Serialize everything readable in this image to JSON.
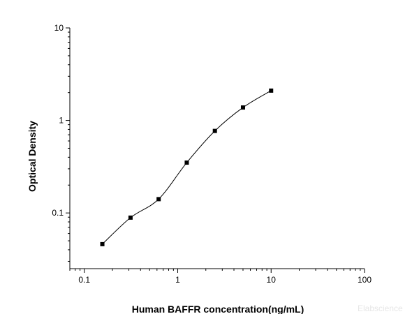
{
  "chart_data": {
    "type": "scatter",
    "title": "",
    "xlabel": "Human BAFFR concentration(ng/mL)",
    "ylabel": "Optical Density",
    "xscale": "log",
    "yscale": "log",
    "xlim": [
      0.07,
      100
    ],
    "ylim": [
      0.025,
      10
    ],
    "x_ticks": [
      0.1,
      1,
      10,
      100
    ],
    "x_tick_labels": [
      "0.1",
      "1",
      "10",
      "100"
    ],
    "y_ticks": [
      0.1,
      1,
      10
    ],
    "y_tick_labels": [
      "0.1",
      "1",
      "10"
    ],
    "grid": false,
    "legend": "none",
    "series": [
      {
        "marker": "square",
        "fit": "four-parameter logistic curve",
        "x": [
          0.156,
          0.3125,
          0.625,
          1.25,
          2.5,
          5,
          10
        ],
        "y": [
          0.046,
          0.089,
          0.141,
          0.35,
          0.77,
          1.38,
          2.1
        ]
      }
    ]
  },
  "watermark": "Elabscience"
}
